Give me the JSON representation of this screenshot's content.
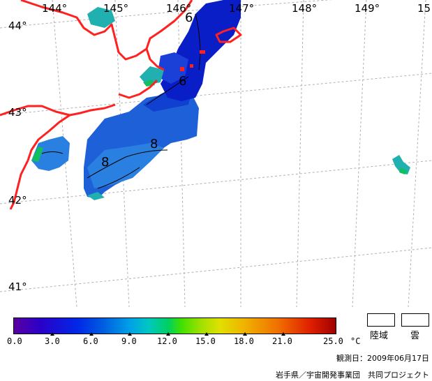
{
  "map": {
    "longitude_labels": [
      "144°",
      "145°",
      "146°",
      "147°",
      "148°",
      "149°",
      "15"
    ],
    "latitude_labels": [
      "44°",
      "43°",
      "42°",
      "41°"
    ],
    "contour_labels": [
      "6",
      "6",
      "8",
      "8"
    ],
    "colors": {
      "coastline": "#ff2020",
      "grid": "#b0b0b0",
      "sst_dark": "#0a1ec8",
      "sst_mid": "#1e60d8",
      "sst_light": "#2896e0",
      "sst_teal": "#20b0b0",
      "sst_green": "#10c060"
    }
  },
  "colorbar": {
    "tick_labels": [
      "0.0",
      "3.0",
      "6.0",
      "9.0",
      "12.0",
      "15.0",
      "18.0",
      "21.0",
      "25.0"
    ],
    "tick_values": [
      0,
      3,
      6,
      9,
      12,
      15,
      18,
      21,
      25
    ],
    "unit": "°C",
    "range": [
      0,
      25
    ]
  },
  "legend": {
    "land_label": "陸域",
    "cloud_label": "雲"
  },
  "footer": {
    "observation_date": "観測日：2009年06月17日",
    "credit": "岩手県／宇宙開発事業団　共同プロジェクト"
  }
}
